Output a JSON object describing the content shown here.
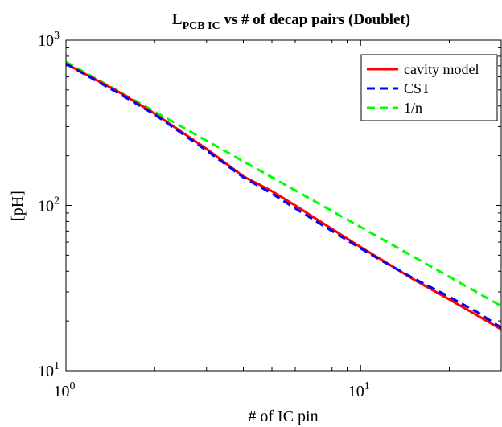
{
  "chart_data": {
    "type": "line",
    "title": {
      "prefix": "L",
      "subscript": "PCB IC",
      "suffix": " vs # of decap pairs (Doublet)"
    },
    "xlabel": "# of IC pin",
    "ylabel": "[pH]",
    "xscale": "log",
    "yscale": "log",
    "xlim": [
      1,
      30
    ],
    "ylim": [
      10,
      1000
    ],
    "xticks": [
      {
        "value": 1,
        "base": "10",
        "exp": "0"
      },
      {
        "value": 10,
        "base": "10",
        "exp": "1"
      }
    ],
    "yticks": [
      {
        "value": 10,
        "base": "10",
        "exp": "1"
      },
      {
        "value": 100,
        "base": "10",
        "exp": "2"
      },
      {
        "value": 1000,
        "base": "10",
        "exp": "3"
      }
    ],
    "grid": false,
    "legend_position": "top-right",
    "series": [
      {
        "name": "cavity model",
        "color": "#ff0000",
        "style": "solid",
        "x": [
          1,
          1.5,
          2,
          3,
          4,
          5,
          6,
          8,
          10,
          12,
          15,
          20,
          25,
          30
        ],
        "y": [
          720,
          490,
          360,
          220,
          150,
          122,
          100,
          72,
          56,
          46,
          36,
          27,
          21.5,
          17.8
        ]
      },
      {
        "name": "CST",
        "color": "#0000ff",
        "style": "dashed",
        "x": [
          1,
          1.5,
          2,
          3,
          4,
          5,
          6,
          8,
          10,
          12,
          15,
          20,
          25,
          30
        ],
        "y": [
          720,
          480,
          355,
          215,
          148,
          118,
          96,
          70,
          55,
          45.5,
          36.5,
          28,
          22.5,
          18.2
        ]
      },
      {
        "name": "1/n",
        "color": "#00ff00",
        "style": "dashed",
        "x": [
          1,
          30
        ],
        "y": [
          740,
          24.67
        ]
      }
    ]
  }
}
